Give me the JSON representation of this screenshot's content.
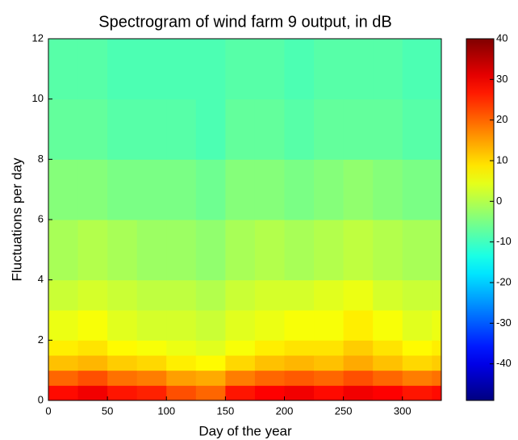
{
  "chart_data": {
    "type": "heatmap",
    "title": "Spectrogram of wind farm 9 output, in dB",
    "x_label": "Day of the year",
    "y_label": "Fluctuations per day",
    "x_edges": [
      0,
      25,
      50,
      75,
      100,
      125,
      150,
      175,
      200,
      225,
      250,
      275,
      300,
      325,
      333
    ],
    "y_edges": [
      0,
      0.5,
      1,
      1.5,
      2,
      3,
      4,
      6,
      8,
      10,
      12
    ],
    "z": [
      [
        28,
        30,
        27,
        26,
        22,
        20,
        27,
        29,
        30,
        28,
        30,
        29,
        27,
        28
      ],
      [
        20,
        22,
        19,
        18,
        15,
        14,
        18,
        20,
        21,
        20,
        22,
        20,
        18,
        19
      ],
      [
        12,
        13,
        11,
        10,
        8,
        7,
        10,
        12,
        13,
        12,
        14,
        12,
        10,
        11
      ],
      [
        8,
        9,
        7,
        6,
        5,
        4,
        6,
        8,
        9,
        9,
        11,
        9,
        7,
        8
      ],
      [
        5,
        6,
        4,
        3,
        3,
        2,
        4,
        5,
        6,
        6,
        8,
        6,
        4,
        5
      ],
      [
        2,
        3,
        2,
        1,
        1,
        0,
        2,
        3,
        3,
        4,
        5,
        3,
        2,
        2
      ],
      [
        -1,
        0,
        -1,
        -2,
        -2,
        -3,
        -1,
        0,
        -1,
        0,
        1,
        0,
        -1,
        -1
      ],
      [
        -4,
        -4,
        -5,
        -5,
        -5,
        -6,
        -4,
        -4,
        -5,
        -4,
        -3,
        -4,
        -5,
        -5
      ],
      [
        -7,
        -7,
        -8,
        -8,
        -8,
        -9,
        -7,
        -7,
        -8,
        -7,
        -7,
        -7,
        -8,
        -8
      ],
      [
        -8,
        -8,
        -9,
        -9,
        -9,
        -9,
        -8,
        -8,
        -9,
        -8,
        -8,
        -8,
        -9,
        -9
      ]
    ],
    "colormap": "jet",
    "clim": [
      -49,
      40
    ],
    "xlim": [
      0,
      333
    ],
    "ylim": [
      0,
      12
    ],
    "xticks": [
      0,
      50,
      100,
      150,
      200,
      250,
      300
    ],
    "yticks": [
      0,
      2,
      4,
      6,
      8,
      10,
      12
    ],
    "cticks": [
      -40,
      -30,
      -20,
      -10,
      0,
      10,
      20,
      30,
      40
    ]
  }
}
